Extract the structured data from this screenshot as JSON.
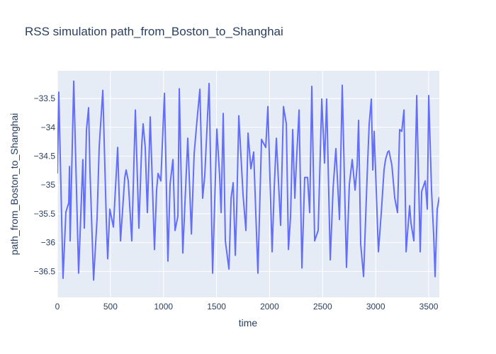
{
  "chart_data": {
    "type": "line",
    "title": "RSS simulation path_from_Boston_to_Shanghai",
    "x_label": "time",
    "y_label": "path_from_Boston_to_Shanghai",
    "xlim": [
      0,
      3600
    ],
    "ylim": [
      -36.95,
      -33.02
    ],
    "xticks": [
      0,
      500,
      1000,
      1500,
      2000,
      2500,
      3000,
      3500
    ],
    "yticks": [
      {
        "value": -36.5,
        "label": "−36.5"
      },
      {
        "value": -36,
        "label": "−36"
      },
      {
        "value": -35.5,
        "label": "−35.5"
      },
      {
        "value": -35,
        "label": "−35"
      },
      {
        "value": -34.5,
        "label": "−34.5"
      },
      {
        "value": -34,
        "label": "−34"
      },
      {
        "value": -33.5,
        "label": "−33.5"
      }
    ],
    "grid": true,
    "series": [
      {
        "name": "path_from_Boston_to_Shanghai",
        "color": "#636efa",
        "x": [
          0,
          13,
          53,
          80,
          107,
          114,
          120,
          154,
          200,
          240,
          254,
          274,
          294,
          307,
          341,
          374,
          394,
          428,
          461,
          474,
          494,
          528,
          568,
          595,
          635,
          648,
          668,
          701,
          735,
          768,
          795,
          808,
          828,
          848,
          875,
          915,
          935,
          949,
          975,
          1009,
          1042,
          1062,
          1089,
          1109,
          1136,
          1149,
          1182,
          1229,
          1263,
          1289,
          1316,
          1343,
          1369,
          1389,
          1430,
          1463,
          1503,
          1530,
          1543,
          1563,
          1583,
          1617,
          1637,
          1657,
          1677,
          1690,
          1710,
          1750,
          1777,
          1797,
          1824,
          1850,
          1877,
          1890,
          1924,
          1964,
          1984,
          2024,
          2044,
          2064,
          2104,
          2131,
          2158,
          2178,
          2198,
          2218,
          2238,
          2251,
          2278,
          2305,
          2331,
          2358,
          2378,
          2398,
          2425,
          2458,
          2492,
          2518,
          2538,
          2572,
          2599,
          2625,
          2659,
          2685,
          2725,
          2752,
          2779,
          2806,
          2826,
          2839,
          2859,
          2886,
          2919,
          2939,
          2959,
          2973,
          2986,
          3026,
          3053,
          3079,
          3093,
          3113,
          3126,
          3153,
          3180,
          3206,
          3226,
          3246,
          3267,
          3287,
          3320,
          3333,
          3360,
          3387,
          3420,
          3434,
          3467,
          3487,
          3500,
          3527,
          3547,
          3560,
          3580,
          3600
        ],
        "values": [
          -34.8,
          -33.39,
          -36.62,
          -35.47,
          -35.31,
          -34.68,
          -35.97,
          -33.2,
          -36.53,
          -34.56,
          -35.75,
          -34.04,
          -33.66,
          -34.74,
          -36.65,
          -35.58,
          -34.34,
          -33.36,
          -35.6,
          -36.28,
          -35.42,
          -35.73,
          -34.35,
          -35.97,
          -34.87,
          -34.74,
          -34.93,
          -35.97,
          -33.7,
          -35.75,
          -34.31,
          -33.94,
          -34.35,
          -35.48,
          -33.82,
          -36.12,
          -35.09,
          -34.8,
          -34.93,
          -33.41,
          -36.32,
          -34.99,
          -34.56,
          -35.79,
          -35.54,
          -33.33,
          -36.18,
          -34.19,
          -35.85,
          -34.46,
          -33.88,
          -33.34,
          -35.23,
          -34.84,
          -33.24,
          -36.53,
          -34.03,
          -34.87,
          -35.48,
          -33.76,
          -35.97,
          -36.46,
          -35.23,
          -34.96,
          -36.22,
          -35.44,
          -33.8,
          -35.17,
          -35.79,
          -34.1,
          -34.72,
          -34.43,
          -35.85,
          -36.53,
          -34.21,
          -34.35,
          -33.64,
          -36.16,
          -35.05,
          -34.19,
          -35.7,
          -33.64,
          -33.94,
          -36.12,
          -35.54,
          -34.04,
          -35.23,
          -34.68,
          -33.7,
          -36.44,
          -34.87,
          -34.87,
          -35.48,
          -33.29,
          -35.97,
          -35.79,
          -33.51,
          -34.62,
          -33.51,
          -36.3,
          -35.05,
          -34.37,
          -35.6,
          -33.27,
          -36.43,
          -34.99,
          -34.56,
          -35.09,
          -34.66,
          -33.88,
          -36.03,
          -36.59,
          -34.87,
          -33.94,
          -33.51,
          -34.74,
          -34.07,
          -36.16,
          -35.48,
          -34.74,
          -34.56,
          -34.43,
          -34.41,
          -34.66,
          -35.23,
          -35.48,
          -34.04,
          -34.07,
          -33.7,
          -36.16,
          -35.36,
          -35.66,
          -35.97,
          -33.45,
          -36.16,
          -35.11,
          -34.93,
          -35.42,
          -33.45,
          -35.11,
          -35.87,
          -36.59,
          -35.42,
          -35.21
        ]
      }
    ]
  }
}
